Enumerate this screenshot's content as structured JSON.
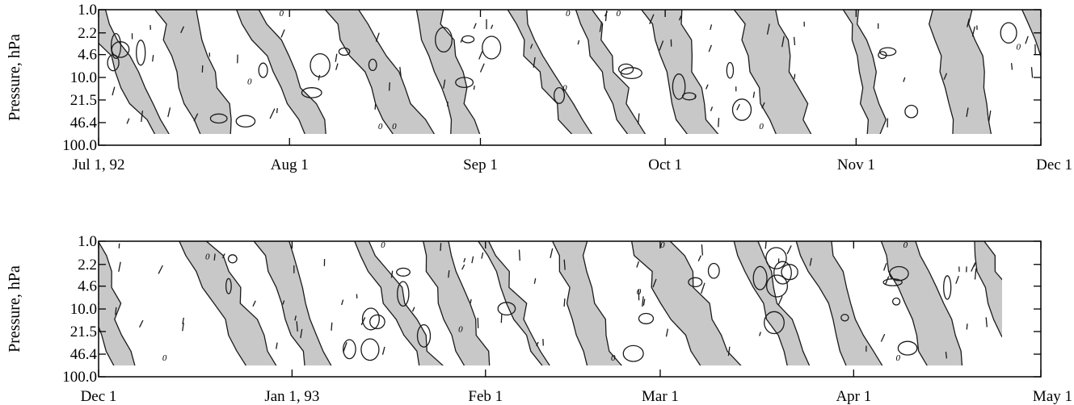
{
  "chart_data": [
    {
      "type": "contour",
      "title": "",
      "ylabel": "Pressure, hPa",
      "xlabel": "",
      "x_ticks": [
        "Jul 1, 92",
        "Aug 1",
        "Sep 1",
        "Oct 1",
        "Nov 1",
        "Dec 1"
      ],
      "x_range": [
        "1992-07-01",
        "1992-12-01"
      ],
      "y_ticks": [
        "1.0",
        "2.2",
        "4.6",
        "10.0",
        "21.5",
        "46.4",
        "100.0"
      ],
      "y_values": [
        1.0,
        2.2,
        4.6,
        10.0,
        21.5,
        46.4,
        100.0
      ],
      "y_scale": "log",
      "y_inverted": true,
      "contour_label": "0",
      "shaded": "gray regions between contours"
    },
    {
      "type": "contour",
      "title": "",
      "ylabel": "Pressure, hPa",
      "xlabel": "",
      "x_ticks": [
        "Dec 1",
        "Jan 1, 93",
        "Feb 1",
        "Mar 1",
        "Apr 1",
        "May 1"
      ],
      "x_range": [
        "1992-12-01",
        "1993-05-01"
      ],
      "y_ticks": [
        "1.0",
        "2.2",
        "4.6",
        "10.0",
        "21.5",
        "46.4",
        "100.0"
      ],
      "y_values": [
        1.0,
        2.2,
        4.6,
        10.0,
        21.5,
        46.4,
        100.0
      ],
      "y_scale": "log",
      "y_inverted": true,
      "contour_label": "0",
      "shaded": "gray regions between contours"
    }
  ]
}
